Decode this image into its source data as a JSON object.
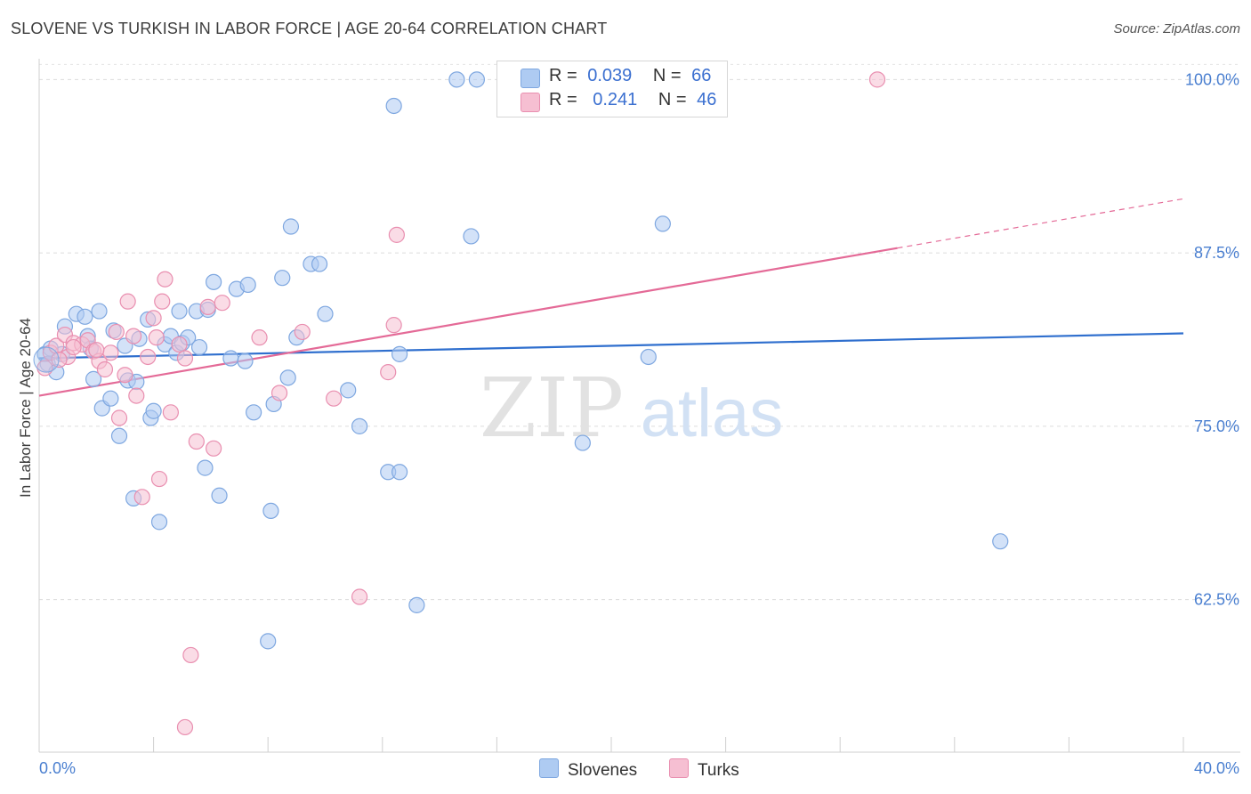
{
  "title": "SLOVENE VS TURKISH IN LABOR FORCE | AGE 20-64 CORRELATION CHART",
  "source": "Source: ZipAtlas.com",
  "watermark": {
    "zip": "ZIP",
    "atlas": "atlas"
  },
  "colors": {
    "blue_fill": "#aecbf2",
    "blue_stroke": "#7ea7e0",
    "blue_line": "#2f6fce",
    "pink_fill": "#f6bfd2",
    "pink_stroke": "#e98fb0",
    "pink_line": "#e46a97",
    "tick": "#4a7fd0",
    "grid": "#dcdcdc"
  },
  "legend": {
    "rows": [
      {
        "r_label": "R =",
        "r_value": "0.039",
        "n_label": "N =",
        "n_value": "66"
      },
      {
        "r_label": "R =",
        "r_value": "0.241",
        "n_label": "N =",
        "n_value": "46"
      }
    ]
  },
  "bottom_legend": {
    "series1": "Slovenes",
    "series2": "Turks"
  },
  "chart_data": {
    "type": "scatter",
    "xlabel": "",
    "ylabel": "In Labor Force | Age 20-64",
    "xlim": [
      0,
      40
    ],
    "ylim": [
      51.5,
      101.5
    ],
    "x_tick_labels": [
      "0.0%",
      "40.0%"
    ],
    "y_ticks": [
      100,
      87.5,
      75,
      62.5
    ],
    "y_tick_labels": [
      "100.0%",
      "87.5%",
      "75.0%",
      "62.5%"
    ],
    "series": [
      {
        "name": "Slovenes",
        "trend": {
          "x": [
            0,
            40
          ],
          "y": [
            79.9,
            81.7
          ],
          "dashed_from": null
        },
        "points": [
          [
            0.2,
            80.2
          ],
          [
            0.3,
            79.5
          ],
          [
            0.4,
            80.6
          ],
          [
            0.6,
            78.9
          ],
          [
            0.8,
            80.2
          ],
          [
            0.9,
            82.2
          ],
          [
            1.3,
            83.1
          ],
          [
            1.6,
            82.9
          ],
          [
            1.7,
            81.5
          ],
          [
            1.8,
            80.6
          ],
          [
            1.9,
            78.4
          ],
          [
            2.1,
            83.3
          ],
          [
            2.2,
            76.3
          ],
          [
            2.5,
            77.0
          ],
          [
            2.6,
            81.9
          ],
          [
            2.8,
            74.3
          ],
          [
            3.0,
            80.8
          ],
          [
            3.1,
            78.3
          ],
          [
            3.3,
            69.8
          ],
          [
            3.4,
            78.2
          ],
          [
            3.5,
            81.3
          ],
          [
            3.8,
            82.7
          ],
          [
            3.9,
            75.6
          ],
          [
            4.0,
            76.1
          ],
          [
            4.2,
            68.1
          ],
          [
            4.4,
            80.9
          ],
          [
            4.6,
            81.5
          ],
          [
            4.8,
            80.3
          ],
          [
            4.9,
            83.3
          ],
          [
            5.0,
            81.0
          ],
          [
            5.2,
            81.4
          ],
          [
            5.5,
            83.3
          ],
          [
            5.6,
            80.7
          ],
          [
            5.8,
            72.0
          ],
          [
            5.9,
            83.4
          ],
          [
            6.1,
            85.4
          ],
          [
            6.3,
            70.0
          ],
          [
            6.7,
            79.9
          ],
          [
            6.9,
            84.9
          ],
          [
            7.2,
            79.7
          ],
          [
            7.3,
            85.2
          ],
          [
            7.5,
            76.0
          ],
          [
            8.1,
            68.9
          ],
          [
            8.2,
            76.6
          ],
          [
            8.5,
            85.7
          ],
          [
            8.7,
            78.5
          ],
          [
            8.8,
            89.4
          ],
          [
            9.0,
            81.4
          ],
          [
            9.5,
            86.7
          ],
          [
            9.8,
            86.7
          ],
          [
            10.0,
            83.1
          ],
          [
            10.8,
            77.6
          ],
          [
            11.2,
            75.0
          ],
          [
            12.2,
            71.7
          ],
          [
            12.6,
            80.2
          ],
          [
            13.2,
            62.1
          ],
          [
            14.6,
            100.0
          ],
          [
            15.3,
            100.0
          ],
          [
            12.4,
            98.1
          ],
          [
            15.1,
            88.7
          ],
          [
            19.0,
            73.8
          ],
          [
            21.3,
            80.0
          ],
          [
            21.8,
            89.6
          ],
          [
            33.6,
            66.7
          ],
          [
            8.0,
            59.5
          ],
          [
            12.6,
            71.7
          ]
        ]
      },
      {
        "name": "Turks",
        "trend": {
          "x": [
            0,
            40
          ],
          "y": [
            77.2,
            91.4
          ],
          "dashed_from": 30.0
        },
        "points": [
          [
            0.2,
            79.2
          ],
          [
            0.4,
            80.3
          ],
          [
            0.6,
            80.8
          ],
          [
            0.9,
            81.6
          ],
          [
            1.0,
            80.0
          ],
          [
            1.2,
            81.0
          ],
          [
            1.5,
            80.9
          ],
          [
            1.7,
            81.2
          ],
          [
            1.9,
            80.4
          ],
          [
            2.1,
            79.7
          ],
          [
            2.3,
            79.1
          ],
          [
            2.5,
            80.3
          ],
          [
            2.7,
            81.8
          ],
          [
            2.8,
            75.6
          ],
          [
            3.0,
            78.7
          ],
          [
            3.1,
            84.0
          ],
          [
            3.3,
            81.5
          ],
          [
            3.4,
            77.2
          ],
          [
            3.6,
            69.9
          ],
          [
            3.8,
            80.0
          ],
          [
            4.0,
            82.8
          ],
          [
            4.1,
            81.4
          ],
          [
            4.2,
            71.2
          ],
          [
            4.3,
            84.0
          ],
          [
            4.4,
            85.6
          ],
          [
            4.6,
            76.0
          ],
          [
            4.9,
            80.9
          ],
          [
            5.1,
            79.9
          ],
          [
            5.3,
            58.5
          ],
          [
            5.5,
            73.9
          ],
          [
            5.9,
            83.6
          ],
          [
            6.1,
            73.4
          ],
          [
            6.4,
            83.9
          ],
          [
            7.7,
            81.4
          ],
          [
            8.4,
            77.4
          ],
          [
            9.2,
            81.8
          ],
          [
            10.3,
            77.0
          ],
          [
            11.2,
            62.7
          ],
          [
            12.2,
            78.9
          ],
          [
            12.4,
            82.3
          ],
          [
            12.5,
            88.8
          ],
          [
            5.1,
            53.3
          ],
          [
            29.3,
            100.0
          ],
          [
            2.0,
            80.5
          ],
          [
            1.2,
            80.7
          ],
          [
            0.7,
            79.8
          ]
        ]
      }
    ]
  }
}
